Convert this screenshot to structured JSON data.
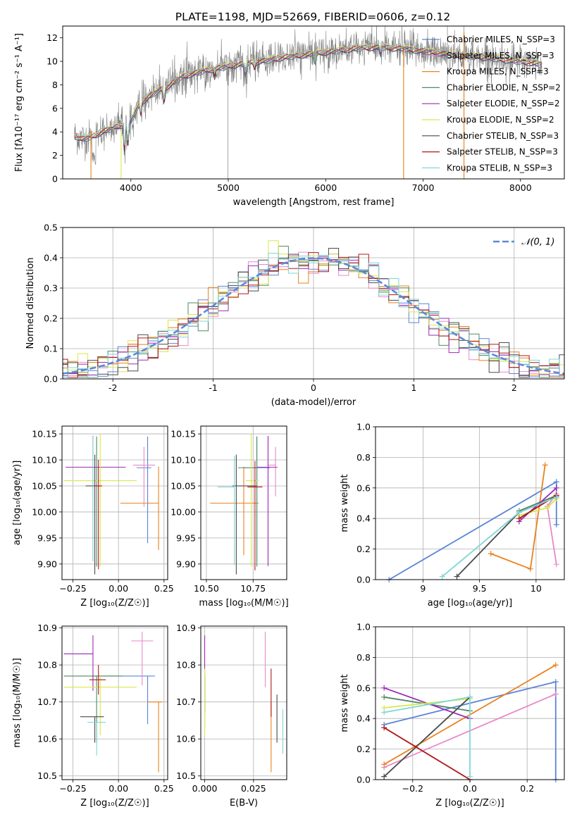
{
  "figure_title": "PLATE=1198, MJD=52669, FIBERID=0606, z=0.12",
  "palette": {
    "Chabrier MILES": "#5a84d8",
    "Salpeter MILES": "#e88ac7",
    "Kroupa MILES": "#e8821e",
    "Chabrier ELODIE": "#4f8a62",
    "Salpeter ELODIE": "#9a2ab5",
    "Kroupa ELODIE": "#d8e84a",
    "Chabrier STELIB": "#4a4a4a",
    "Salpeter STELIB": "#b01818",
    "Kroupa STELIB": "#7fd6d6",
    "data": "#808080",
    "gaussian": "#5a8ad8"
  },
  "chart_data": [
    {
      "id": "spectrum",
      "type": "line",
      "title": "PLATE=1198, MJD=52669, FIBERID=0606, z=0.12",
      "xlabel": "wavelength [Angstrom, rest frame]",
      "ylabel": "Flux [fλ10⁻¹⁷ erg cm⁻² s⁻¹ A⁻¹]",
      "xlim": [
        3300,
        8450
      ],
      "ylim": [
        0,
        13
      ],
      "xticks": [
        4000,
        5000,
        6000,
        7000,
        8000
      ],
      "yticks": [
        0,
        2,
        4,
        6,
        8,
        10,
        12
      ],
      "legend": [
        "Chabrier MILES, N_SSP=3",
        "Salpeter MILES, N_SSP=3",
        "Kroupa MILES, N_SSP=3",
        "Chabrier ELODIE, N_SSP=2",
        "Salpeter ELODIE, N_SSP=2",
        "Kroupa ELODIE, N_SSP=2",
        "Chabrier STELIB, N_SSP=3",
        "Salpeter STELIB, N_SSP=3",
        "Kroupa STELIB, N_SSP=3"
      ],
      "legend_position": "right",
      "continuum": {
        "x": [
          3420,
          3500,
          3600,
          3700,
          3800,
          3900,
          4000,
          4100,
          4200,
          4300,
          4400,
          4500,
          4600,
          4800,
          5000,
          5200,
          5400,
          5600,
          5800,
          6000,
          6200,
          6400,
          6600,
          6800,
          7000,
          7200,
          7400,
          7600,
          7800,
          8000,
          8200
        ],
        "y": [
          3.7,
          3.4,
          3.6,
          4.0,
          4.3,
          4.6,
          5.0,
          6.5,
          7.1,
          7.6,
          8.0,
          8.6,
          8.9,
          9.3,
          9.6,
          9.9,
          10.1,
          10.4,
          10.6,
          10.8,
          11.0,
          11.2,
          11.2,
          11.1,
          10.9,
          10.7,
          10.5,
          10.4,
          10.2,
          10.0,
          9.8
        ]
      }
    },
    {
      "id": "residuals",
      "type": "area",
      "xlabel": "(data-model)/error",
      "ylabel": "Normed distribution",
      "xlim": [
        -2.5,
        2.5
      ],
      "ylim": [
        0,
        0.5
      ],
      "xticks": [
        -2,
        -1,
        0,
        1,
        2
      ],
      "yticks": [
        0.0,
        0.1,
        0.2,
        0.3,
        0.4,
        0.5
      ],
      "bin_width": 0.1,
      "legend": [
        "𝒩(0, 1)"
      ],
      "legend_position": "top-right",
      "grid": true
    },
    {
      "id": "age_vs_Z",
      "type": "scatter",
      "xlabel": "Z [log₁₀(Z/Z☉)]",
      "ylabel": "age  [log₁₀(age/yr)]",
      "xlim": [
        -0.31,
        0.27
      ],
      "ylim": [
        9.87,
        10.165
      ],
      "xticks": [
        -0.25,
        0.0,
        0.25
      ],
      "xtick_labels": [
        "−0.25",
        "0.00",
        "0.25"
      ],
      "yticks": [
        9.9,
        9.95,
        10.0,
        10.05,
        10.1,
        10.15
      ],
      "grid": true,
      "points": [
        {
          "model": "Chabrier MILES",
          "x": 0.16,
          "y": 10.085,
          "xerr": [
            0.06,
            0.02
          ],
          "yerr": [
            0.145,
            0.06
          ]
        },
        {
          "model": "Salpeter MILES",
          "x": 0.14,
          "y": 10.09,
          "xerr": [
            0.06,
            0.06
          ],
          "yerr": [
            0.08,
            0.035
          ]
        },
        {
          "model": "Kroupa MILES",
          "x": 0.22,
          "y": 10.017,
          "xerr": [
            0.21,
            0.0
          ],
          "yerr": [
            0.09,
            0.07
          ]
        },
        {
          "model": "Chabrier ELODIE",
          "x": -0.12,
          "y": 10.085,
          "xerr": [
            0.0,
            0.0
          ],
          "yerr": [
            0.19,
            0.06
          ]
        },
        {
          "model": "Salpeter ELODIE",
          "x": -0.14,
          "y": 10.086,
          "xerr": [
            0.15,
            0.18
          ],
          "yerr": [
            0.18,
            0.06
          ]
        },
        {
          "model": "Kroupa ELODIE",
          "x": -0.1,
          "y": 10.06,
          "xerr": [
            0.2,
            0.2
          ],
          "yerr": [
            0.165,
            0.09
          ]
        },
        {
          "model": "Chabrier STELIB",
          "x": -0.13,
          "y": 10.05,
          "xerr": [
            0.05,
            0.04
          ],
          "yerr": [
            0.17,
            0.06
          ]
        },
        {
          "model": "Salpeter STELIB",
          "x": -0.11,
          "y": 10.05,
          "xerr": [
            0.03,
            0.02
          ],
          "yerr": [
            0.16,
            0.05
          ]
        },
        {
          "model": "Kroupa STELIB",
          "x": -0.14,
          "y": 10.085,
          "xerr": [
            0.0,
            0.0
          ],
          "yerr": [
            0.18,
            0.06
          ]
        }
      ]
    },
    {
      "id": "age_vs_mass",
      "type": "scatter",
      "xlabel": "mass [log₁₀(M/M☉)]",
      "ylabel": "",
      "xlim": [
        10.47,
        10.93
      ],
      "ylim": [
        9.87,
        10.165
      ],
      "xticks": [
        10.5,
        10.75
      ],
      "xtick_labels": [
        "10.50",
        "10.75"
      ],
      "yticks": [
        9.9,
        9.95,
        10.0,
        10.05,
        10.1,
        10.15
      ],
      "grid": true,
      "points": [
        {
          "model": "Chabrier MILES",
          "x": 10.77,
          "y": 10.085,
          "xerr": [
            0.07,
            0.07
          ],
          "yerr": [
            0.18,
            0.06
          ]
        },
        {
          "model": "Salpeter MILES",
          "x": 10.87,
          "y": 10.09,
          "xerr": [
            0.04,
            0.0
          ],
          "yerr": [
            0.06,
            0.035
          ]
        },
        {
          "model": "Kroupa MILES",
          "x": 10.7,
          "y": 10.017,
          "xerr": [
            0.18,
            0.08
          ],
          "yerr": [
            0.1,
            0.07
          ]
        },
        {
          "model": "Chabrier ELODIE",
          "x": 10.77,
          "y": 10.085,
          "xerr": [
            0.1,
            0.0
          ],
          "yerr": [
            0.19,
            0.06
          ]
        },
        {
          "model": "Salpeter ELODIE",
          "x": 10.83,
          "y": 10.086,
          "xerr": [
            0.06,
            0.05
          ],
          "yerr": [
            0.19,
            0.06
          ]
        },
        {
          "model": "Kroupa ELODIE",
          "x": 10.74,
          "y": 10.06,
          "xerr": [
            0.03,
            0.04
          ],
          "yerr": [
            0.165,
            0.09
          ]
        },
        {
          "model": "Chabrier STELIB",
          "x": 10.66,
          "y": 10.05,
          "xerr": [
            0.02,
            0.11
          ],
          "yerr": [
            0.17,
            0.06
          ]
        },
        {
          "model": "Salpeter STELIB",
          "x": 10.76,
          "y": 10.048,
          "xerr": [
            0.04,
            0.04
          ],
          "yerr": [
            0.16,
            0.05
          ]
        },
        {
          "model": "Kroupa STELIB",
          "x": 10.65,
          "y": 10.048,
          "xerr": [
            0.09,
            0.0
          ],
          "yerr": [
            0.15,
            0.06
          ]
        }
      ]
    },
    {
      "id": "weight_vs_age",
      "type": "line",
      "xlabel": "age  [log₁₀(age/yr)]",
      "ylabel": "mass weight",
      "xlim": [
        8.58,
        10.25
      ],
      "ylim": [
        0,
        1
      ],
      "xticks": [
        9.0,
        9.5,
        10.0
      ],
      "yticks": [
        0.0,
        0.2,
        0.4,
        0.6,
        0.8,
        1.0
      ],
      "grid": true,
      "series": [
        {
          "model": "Chabrier MILES",
          "x": [
            8.7,
            10.18,
            10.18
          ],
          "y": [
            0.0,
            0.64,
            0.36
          ]
        },
        {
          "model": "Salpeter MILES",
          "x": [
            10.18,
            10.1,
            10.18
          ],
          "y": [
            0.1,
            0.48,
            0.56
          ]
        },
        {
          "model": "Kroupa MILES",
          "x": [
            9.6,
            9.95,
            10.08
          ],
          "y": [
            0.17,
            0.07,
            0.75
          ]
        },
        {
          "model": "Chabrier ELODIE",
          "x": [
            9.85,
            10.18
          ],
          "y": [
            0.45,
            0.55
          ]
        },
        {
          "model": "Salpeter ELODIE",
          "x": [
            9.85,
            10.18
          ],
          "y": [
            0.38,
            0.6
          ]
        },
        {
          "model": "Kroupa ELODIE",
          "x": [
            9.85,
            10.1,
            10.18
          ],
          "y": [
            0.42,
            0.47,
            0.53
          ]
        },
        {
          "model": "Chabrier STELIB",
          "x": [
            9.3,
            9.85,
            10.18
          ],
          "y": [
            0.02,
            0.44,
            0.54
          ]
        },
        {
          "model": "Salpeter STELIB",
          "x": [
            9.85,
            10.18
          ],
          "y": [
            0.4,
            0.55
          ]
        },
        {
          "model": "Kroupa STELIB",
          "x": [
            9.17,
            9.85,
            10.18
          ],
          "y": [
            0.02,
            0.44,
            0.54
          ]
        }
      ]
    },
    {
      "id": "mass_vs_Z",
      "type": "scatter",
      "xlabel": "Z [log₁₀(Z/Z☉)]",
      "ylabel": "mass [log₁₀(M/M☉)]",
      "xlim": [
        -0.31,
        0.27
      ],
      "ylim": [
        10.49,
        10.905
      ],
      "xticks": [
        -0.25,
        0.0,
        0.25
      ],
      "xtick_labels": [
        "−0.25",
        "0.00",
        "0.25"
      ],
      "yticks": [
        10.5,
        10.6,
        10.7,
        10.8,
        10.9
      ],
      "grid": true,
      "points": [
        {
          "model": "Chabrier MILES",
          "x": 0.16,
          "y": 10.77,
          "xerr": [
            0.3,
            0.04
          ],
          "yerr": [
            0.13,
            0.0
          ]
        },
        {
          "model": "Salpeter MILES",
          "x": 0.13,
          "y": 10.865,
          "xerr": [
            0.06,
            0.06
          ],
          "yerr": [
            0.12,
            0.025
          ]
        },
        {
          "model": "Kroupa MILES",
          "x": 0.22,
          "y": 10.7,
          "xerr": [
            0.06,
            0.02
          ],
          "yerr": [
            0.19,
            0.0
          ]
        },
        {
          "model": "Chabrier ELODIE",
          "x": -0.12,
          "y": 10.77,
          "xerr": [
            0.18,
            0.14
          ],
          "yerr": [
            0.18,
            0.0
          ]
        },
        {
          "model": "Salpeter ELODIE",
          "x": -0.14,
          "y": 10.83,
          "xerr": [
            0.16,
            0.0
          ],
          "yerr": [
            0.1,
            0.05
          ]
        },
        {
          "model": "Kroupa ELODIE",
          "x": -0.1,
          "y": 10.74,
          "xerr": [
            0.2,
            0.2
          ],
          "yerr": [
            0.13,
            0.03
          ]
        },
        {
          "model": "Chabrier STELIB",
          "x": -0.13,
          "y": 10.66,
          "xerr": [
            0.08,
            0.05
          ],
          "yerr": [
            0.07,
            0.0
          ]
        },
        {
          "model": "Salpeter STELIB",
          "x": -0.11,
          "y": 10.76,
          "xerr": [
            0.05,
            0.04
          ],
          "yerr": [
            0.04,
            0.04
          ]
        },
        {
          "model": "Kroupa STELIB",
          "x": -0.12,
          "y": 10.645,
          "xerr": [
            0.05,
            0.05
          ],
          "yerr": [
            0.09,
            0.0
          ]
        }
      ]
    },
    {
      "id": "mass_vs_ebv",
      "type": "scatter",
      "xlabel": "E(B-V)",
      "ylabel": "",
      "xlim": [
        -0.002,
        0.042
      ],
      "ylim": [
        10.49,
        10.905
      ],
      "xticks": [
        0.0,
        0.025
      ],
      "xtick_labels": [
        "0.000",
        "0.025"
      ],
      "yticks": [
        10.5,
        10.6,
        10.7,
        10.8,
        10.9
      ],
      "grid": true,
      "points": [
        {
          "model": "Chabrier MILES",
          "x": 0.0,
          "y": 10.77,
          "yerr": [
            0.1,
            0.0
          ]
        },
        {
          "model": "Salpeter MILES",
          "x": 0.031,
          "y": 10.86,
          "yerr": [
            0.12,
            0.03
          ]
        },
        {
          "model": "Kroupa MILES",
          "x": 0.034,
          "y": 10.7,
          "yerr": [
            0.19,
            0.0
          ]
        },
        {
          "model": "Chabrier ELODIE",
          "x": 0.0,
          "y": 10.7,
          "yerr": [
            0.07,
            0.07
          ]
        },
        {
          "model": "Salpeter ELODIE",
          "x": 0.0,
          "y": 10.83,
          "yerr": [
            0.16,
            0.05
          ]
        },
        {
          "model": "Kroupa ELODIE",
          "x": 0.0,
          "y": 10.74,
          "yerr": [
            0.13,
            0.05
          ]
        },
        {
          "model": "Chabrier STELIB",
          "x": 0.037,
          "y": 10.66,
          "yerr": [
            0.07,
            0.06
          ]
        },
        {
          "model": "Salpeter STELIB",
          "x": 0.034,
          "y": 10.7,
          "yerr": [
            0.04,
            0.09
          ]
        },
        {
          "model": "Kroupa STELIB",
          "x": 0.04,
          "y": 10.65,
          "yerr": [
            0.09,
            0.03
          ]
        }
      ]
    },
    {
      "id": "weight_vs_Z",
      "type": "line",
      "xlabel": "Z [log₁₀(Z/Z☉)]",
      "ylabel": "mass weight",
      "xlim": [
        -0.33,
        0.33
      ],
      "ylim": [
        0,
        1
      ],
      "xticks": [
        -0.2,
        0.0,
        0.2
      ],
      "xtick_labels": [
        "−0.2",
        "0.0",
        "0.2"
      ],
      "yticks": [
        0.0,
        0.2,
        0.4,
        0.6,
        0.8,
        1.0
      ],
      "grid": true,
      "series": [
        {
          "model": "Chabrier MILES",
          "x": [
            -0.3,
            0.3,
            0.3
          ],
          "y": [
            0.36,
            0.64,
            0.0
          ]
        },
        {
          "model": "Salpeter MILES",
          "x": [
            -0.3,
            0.3
          ],
          "y": [
            0.08,
            0.56
          ]
        },
        {
          "model": "Kroupa MILES",
          "x": [
            -0.3,
            0.3
          ],
          "y": [
            0.1,
            0.75
          ]
        },
        {
          "model": "Chabrier ELODIE",
          "x": [
            -0.3,
            0.0
          ],
          "y": [
            0.54,
            0.45
          ]
        },
        {
          "model": "Salpeter ELODIE",
          "x": [
            -0.3,
            0.0
          ],
          "y": [
            0.6,
            0.4
          ]
        },
        {
          "model": "Kroupa ELODIE",
          "x": [
            -0.3,
            0.0
          ],
          "y": [
            0.47,
            0.53
          ]
        },
        {
          "model": "Chabrier STELIB",
          "x": [
            -0.3,
            0.0
          ],
          "y": [
            0.02,
            0.54
          ]
        },
        {
          "model": "Salpeter STELIB",
          "x": [
            -0.3,
            0.0
          ],
          "y": [
            0.34,
            0.0
          ]
        },
        {
          "model": "Kroupa STELIB",
          "x": [
            -0.3,
            0.0,
            0.0
          ],
          "y": [
            0.44,
            0.54,
            0.02
          ]
        }
      ]
    }
  ]
}
